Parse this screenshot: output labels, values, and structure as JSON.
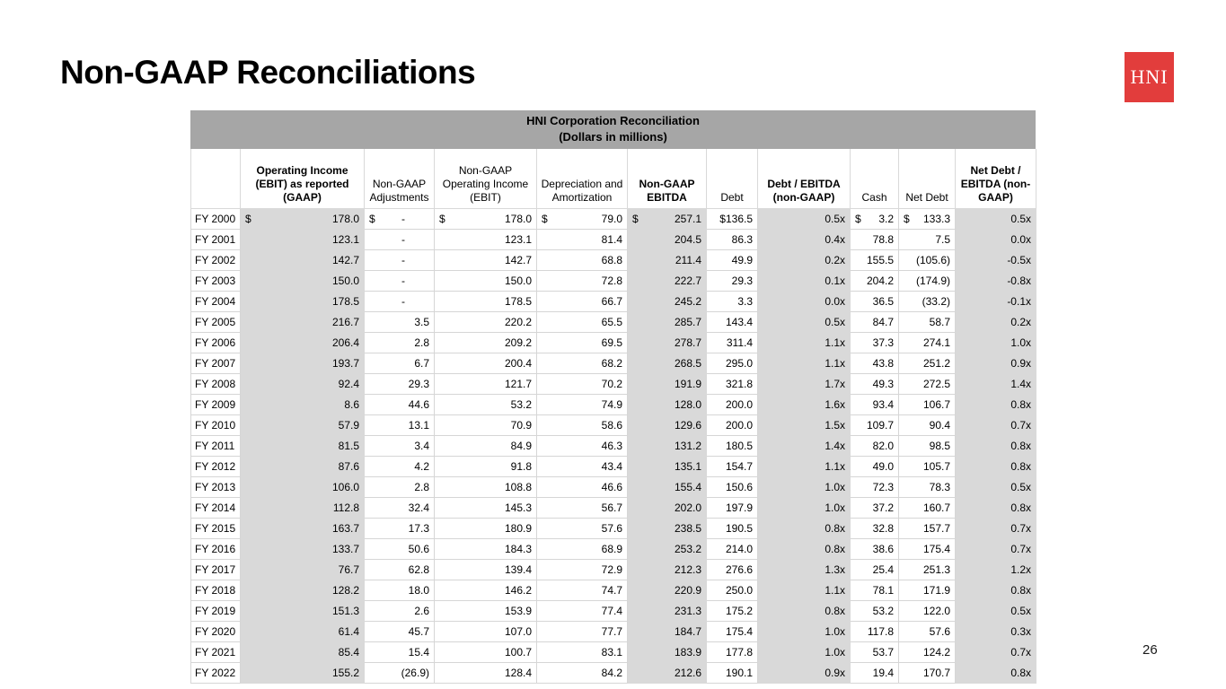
{
  "slide": {
    "title": "Non-GAAP Reconciliations",
    "page_number": "26",
    "logo_text": "HNI",
    "logo_color": "#e23d3c"
  },
  "table": {
    "title_line1": "HNI Corporation Reconciliation",
    "title_line2": "(Dollars in millions)",
    "header_bg": "#a6a6a6",
    "shaded_col_bg": "#d9d9d9",
    "columns": [
      {
        "label": "",
        "bold": false,
        "shaded": false
      },
      {
        "label": "Operating Income (EBIT) as reported (GAAP)",
        "bold": true,
        "shaded": true
      },
      {
        "label": "Non-GAAP Adjustments",
        "bold": false,
        "shaded": false
      },
      {
        "label": "Non-GAAP Operating Income (EBIT)",
        "bold": false,
        "shaded": false
      },
      {
        "label": "Depreciation and Amortization",
        "bold": false,
        "shaded": false
      },
      {
        "label": "Non-GAAP EBITDA",
        "bold": true,
        "shaded": true
      },
      {
        "label": "Debt",
        "bold": false,
        "shaded": false
      },
      {
        "label": "Debt / EBITDA (non-GAAP)",
        "bold": true,
        "shaded": true
      },
      {
        "label": "Cash",
        "bold": false,
        "shaded": false
      },
      {
        "label": "Net Debt",
        "bold": false,
        "shaded": false
      },
      {
        "label": "Net Debt / EBITDA (non-GAAP)",
        "bold": true,
        "shaded": true
      }
    ],
    "rows": [
      {
        "year": "FY 2000",
        "cells": [
          "$ 178.0",
          "$ -",
          "$ 178.0",
          "$ 79.0",
          "$ 257.1",
          "$136.5",
          "0.5x",
          "$ 3.2",
          "$ 133.3",
          "0.5x"
        ]
      },
      {
        "year": "FY 2001",
        "cells": [
          "123.1",
          "-",
          "123.1",
          "81.4",
          "204.5",
          "86.3",
          "0.4x",
          "78.8",
          "7.5",
          "0.0x"
        ]
      },
      {
        "year": "FY 2002",
        "cells": [
          "142.7",
          "-",
          "142.7",
          "68.8",
          "211.4",
          "49.9",
          "0.2x",
          "155.5",
          "(105.6)",
          "-0.5x"
        ]
      },
      {
        "year": "FY 2003",
        "cells": [
          "150.0",
          "-",
          "150.0",
          "72.8",
          "222.7",
          "29.3",
          "0.1x",
          "204.2",
          "(174.9)",
          "-0.8x"
        ]
      },
      {
        "year": "FY 2004",
        "cells": [
          "178.5",
          "-",
          "178.5",
          "66.7",
          "245.2",
          "3.3",
          "0.0x",
          "36.5",
          "(33.2)",
          "-0.1x"
        ]
      },
      {
        "year": "FY 2005",
        "cells": [
          "216.7",
          "3.5",
          "220.2",
          "65.5",
          "285.7",
          "143.4",
          "0.5x",
          "84.7",
          "58.7",
          "0.2x"
        ]
      },
      {
        "year": "FY 2006",
        "cells": [
          "206.4",
          "2.8",
          "209.2",
          "69.5",
          "278.7",
          "311.4",
          "1.1x",
          "37.3",
          "274.1",
          "1.0x"
        ]
      },
      {
        "year": "FY 2007",
        "cells": [
          "193.7",
          "6.7",
          "200.4",
          "68.2",
          "268.5",
          "295.0",
          "1.1x",
          "43.8",
          "251.2",
          "0.9x"
        ]
      },
      {
        "year": "FY 2008",
        "cells": [
          "92.4",
          "29.3",
          "121.7",
          "70.2",
          "191.9",
          "321.8",
          "1.7x",
          "49.3",
          "272.5",
          "1.4x"
        ]
      },
      {
        "year": "FY 2009",
        "cells": [
          "8.6",
          "44.6",
          "53.2",
          "74.9",
          "128.0",
          "200.0",
          "1.6x",
          "93.4",
          "106.7",
          "0.8x"
        ]
      },
      {
        "year": "FY 2010",
        "cells": [
          "57.9",
          "13.1",
          "70.9",
          "58.6",
          "129.6",
          "200.0",
          "1.5x",
          "109.7",
          "90.4",
          "0.7x"
        ]
      },
      {
        "year": "FY 2011",
        "cells": [
          "81.5",
          "3.4",
          "84.9",
          "46.3",
          "131.2",
          "180.5",
          "1.4x",
          "82.0",
          "98.5",
          "0.8x"
        ]
      },
      {
        "year": "FY 2012",
        "cells": [
          "87.6",
          "4.2",
          "91.8",
          "43.4",
          "135.1",
          "154.7",
          "1.1x",
          "49.0",
          "105.7",
          "0.8x"
        ]
      },
      {
        "year": "FY 2013",
        "cells": [
          "106.0",
          "2.8",
          "108.8",
          "46.6",
          "155.4",
          "150.6",
          "1.0x",
          "72.3",
          "78.3",
          "0.5x"
        ]
      },
      {
        "year": "FY 2014",
        "cells": [
          "112.8",
          "32.4",
          "145.3",
          "56.7",
          "202.0",
          "197.9",
          "1.0x",
          "37.2",
          "160.7",
          "0.8x"
        ]
      },
      {
        "year": "FY 2015",
        "cells": [
          "163.7",
          "17.3",
          "180.9",
          "57.6",
          "238.5",
          "190.5",
          "0.8x",
          "32.8",
          "157.7",
          "0.7x"
        ]
      },
      {
        "year": "FY 2016",
        "cells": [
          "133.7",
          "50.6",
          "184.3",
          "68.9",
          "253.2",
          "214.0",
          "0.8x",
          "38.6",
          "175.4",
          "0.7x"
        ]
      },
      {
        "year": "FY 2017",
        "cells": [
          "76.7",
          "62.8",
          "139.4",
          "72.9",
          "212.3",
          "276.6",
          "1.3x",
          "25.4",
          "251.3",
          "1.2x"
        ]
      },
      {
        "year": "FY 2018",
        "cells": [
          "128.2",
          "18.0",
          "146.2",
          "74.7",
          "220.9",
          "250.0",
          "1.1x",
          "78.1",
          "171.9",
          "0.8x"
        ]
      },
      {
        "year": "FY 2019",
        "cells": [
          "151.3",
          "2.6",
          "153.9",
          "77.4",
          "231.3",
          "175.2",
          "0.8x",
          "53.2",
          "122.0",
          "0.5x"
        ]
      },
      {
        "year": "FY 2020",
        "cells": [
          "61.4",
          "45.7",
          "107.0",
          "77.7",
          "184.7",
          "175.4",
          "1.0x",
          "117.8",
          "57.6",
          "0.3x"
        ]
      },
      {
        "year": "FY 2021",
        "cells": [
          "85.4",
          "15.4",
          "100.7",
          "83.1",
          "183.9",
          "177.8",
          "1.0x",
          "53.7",
          "124.2",
          "0.7x"
        ]
      },
      {
        "year": "FY 2022",
        "cells": [
          "155.2",
          "(26.9)",
          "128.4",
          "84.2",
          "212.6",
          "190.1",
          "0.9x",
          "19.4",
          "170.7",
          "0.8x"
        ]
      }
    ]
  }
}
